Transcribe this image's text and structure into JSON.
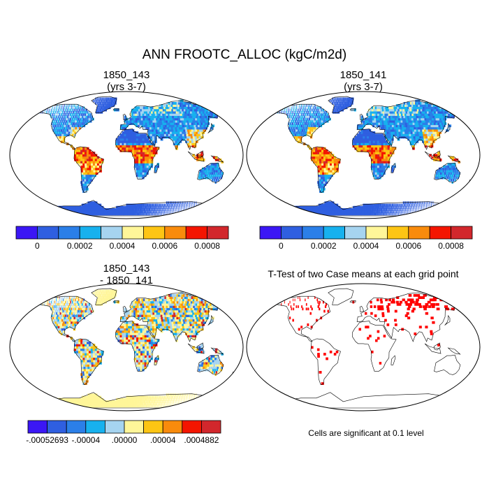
{
  "chart_data": {
    "type": "heatmap",
    "title": "ANN FROOTC_ALLOC (kgC/m2d)",
    "projection": "robinson",
    "panels": [
      {
        "id": "case1",
        "title": "1850_143",
        "subtitle": "(yrs 3-7)",
        "colorbar": {
          "colors": [
            "#3b17f5",
            "#2f5fe0",
            "#2b7fe8",
            "#17b1ee",
            "#a6d4f0",
            "#fff699",
            "#fdc514",
            "#f98b0c",
            "#f41500",
            "#d2272c"
          ],
          "tick_labels": [
            "0",
            "0.0002",
            "0.0004",
            "0.0006",
            "0.0008"
          ],
          "range": [
            -0.0001,
            0.0009
          ]
        }
      },
      {
        "id": "case2",
        "title": "1850_141",
        "subtitle": "(yrs 3-7)",
        "colorbar": {
          "colors": [
            "#3b17f5",
            "#2f5fe0",
            "#2b7fe8",
            "#17b1ee",
            "#a6d4f0",
            "#fff699",
            "#fdc514",
            "#f98b0c",
            "#f41500",
            "#d2272c"
          ],
          "tick_labels": [
            "0",
            "0.0002",
            "0.0004",
            "0.0006",
            "0.0008"
          ],
          "range": [
            -0.0001,
            0.0009
          ]
        }
      },
      {
        "id": "difference",
        "title": "1850_143",
        "subtitle": "- 1850_141",
        "colorbar": {
          "colors": [
            "#3b17f5",
            "#2f5fe0",
            "#2b7fe8",
            "#17b1ee",
            "#a6d4f0",
            "#fff699",
            "#fdc514",
            "#f98b0c",
            "#f41500",
            "#d2272c"
          ],
          "tick_labels": [
            "-.00052693",
            "-.00004",
            ".00000",
            ".00004",
            ".0004882"
          ],
          "range": [
            -0.00052693,
            0.0004882
          ]
        }
      },
      {
        "id": "ttest",
        "title": "T-Test of two Case means at each grid point",
        "subtitle": "",
        "note": "Cells are significant at 0.1 level",
        "significance_level": 0.1,
        "significant_color": "#ff0000"
      }
    ]
  }
}
